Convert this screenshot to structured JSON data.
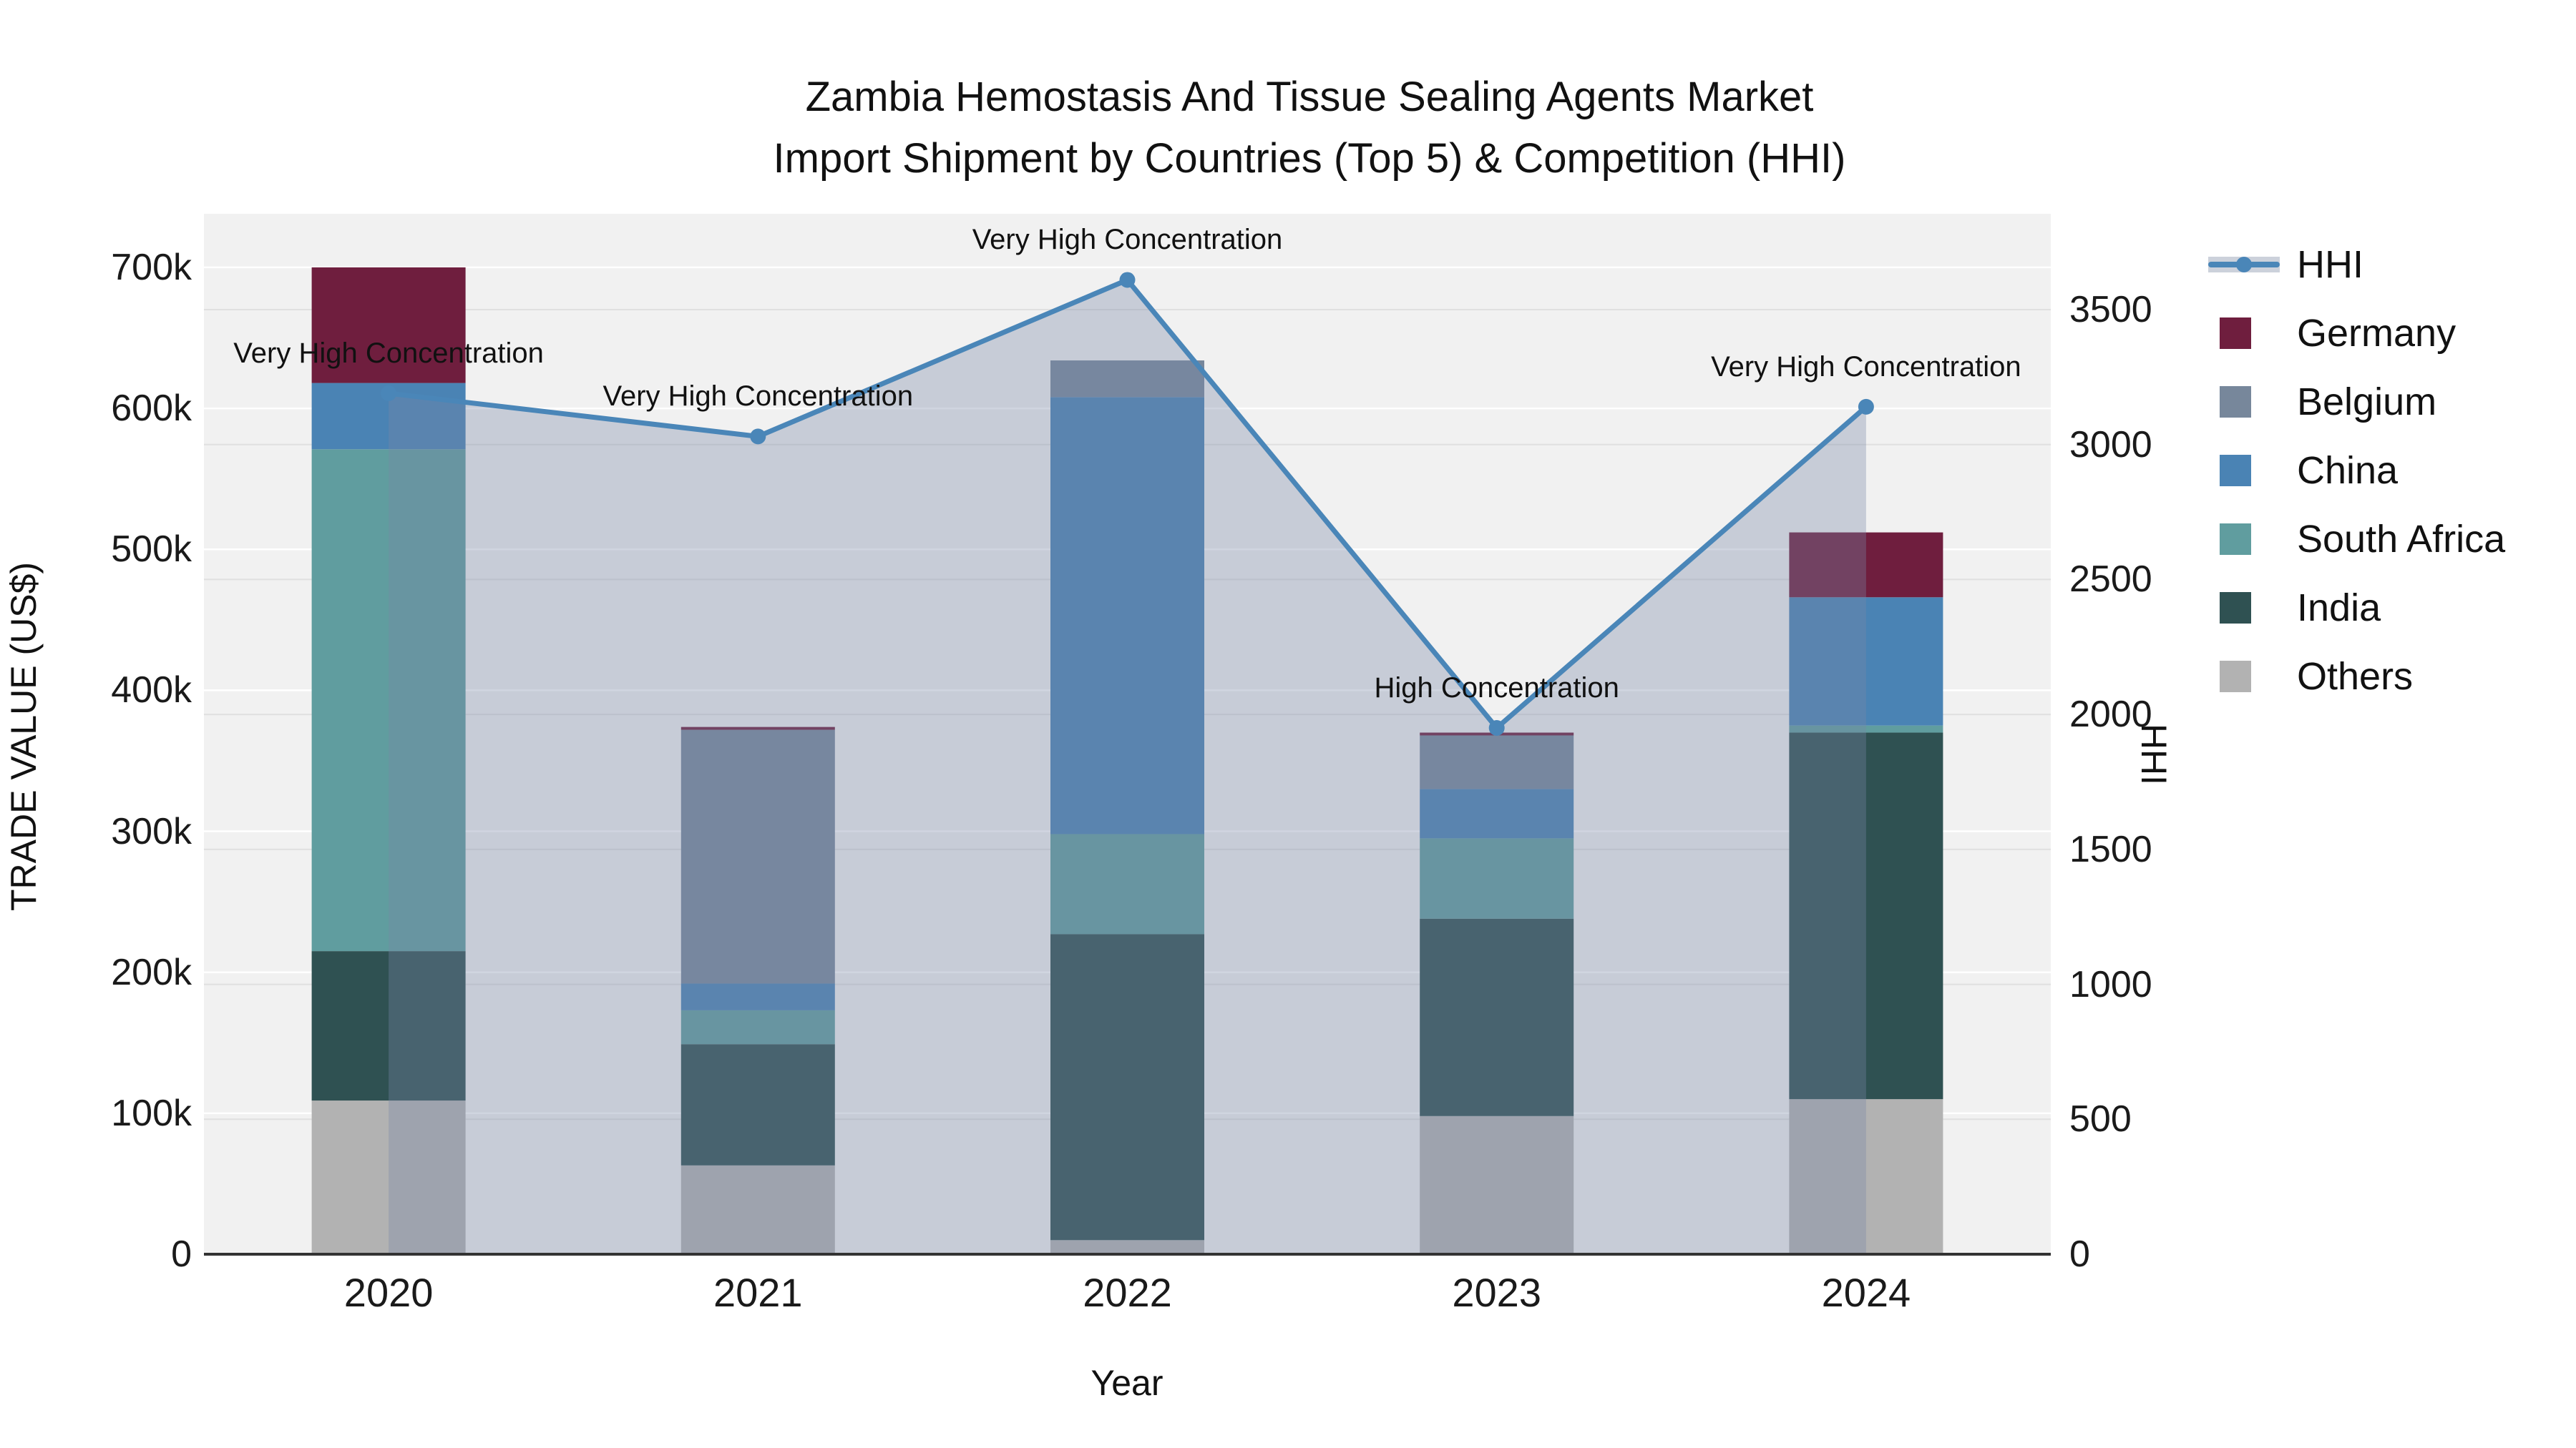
{
  "title": {
    "line1": "Zambia Hemostasis And Tissue Sealing Agents Market",
    "line2": "Import Shipment by Countries (Top 5) & Competition (HHI)"
  },
  "chart_data": {
    "type": "bar",
    "subtype": "stacked-bars-with-hhi-line-and-area",
    "categories": [
      "2020",
      "2021",
      "2022",
      "2023",
      "2024"
    ],
    "xlabel": "Year",
    "ylabel_left": "TRADE VALUE (US$)",
    "ylabel_right": "HHI",
    "y_left_ticks": [
      "0",
      "100k",
      "200k",
      "300k",
      "400k",
      "500k",
      "600k",
      "700k"
    ],
    "y_left_tick_values": [
      0,
      100000,
      200000,
      300000,
      400000,
      500000,
      600000,
      700000
    ],
    "y_left_max": 738000,
    "y_right_ticks": [
      "0",
      "500",
      "1000",
      "1500",
      "2000",
      "2500",
      "3000",
      "3500"
    ],
    "y_right_tick_values": [
      0,
      500,
      1000,
      1500,
      2000,
      2500,
      3000,
      3500
    ],
    "y_right_max": 3855,
    "grid": true,
    "legend_position": "right",
    "series": [
      {
        "name": "Germany",
        "color": "#6f1e3e",
        "values": [
          82000,
          2000,
          0,
          2000,
          46000
        ]
      },
      {
        "name": "Belgium",
        "color": "#77879b",
        "values": [
          0,
          180000,
          26000,
          38000,
          0
        ]
      },
      {
        "name": "China",
        "color": "#4a83b4",
        "values": [
          47000,
          19000,
          310000,
          35000,
          91000
        ]
      },
      {
        "name": "South Africa",
        "color": "#609d9f",
        "values": [
          356000,
          24000,
          71000,
          57000,
          5000
        ]
      },
      {
        "name": "India",
        "color": "#2f5152",
        "values": [
          106000,
          86000,
          217000,
          140000,
          260000
        ]
      },
      {
        "name": "Others",
        "color": "#b2b2b2",
        "values": [
          109000,
          63000,
          10000,
          98000,
          110000
        ]
      }
    ],
    "stack_order_bottom_to_top": [
      "Others",
      "India",
      "South Africa",
      "China",
      "Belgium",
      "Germany"
    ],
    "bar_totals": [
      700000,
      374000,
      634000,
      370000,
      512000
    ],
    "line_series": {
      "name": "HHI",
      "color": "#4a86b8",
      "area_fill": "rgba(120,135,165,0.35)",
      "values": [
        3190,
        3030,
        3610,
        1950,
        3140
      ]
    },
    "annotations": [
      {
        "x": "2020",
        "text": "Very High Concentration"
      },
      {
        "x": "2021",
        "text": "Very High Concentration"
      },
      {
        "x": "2022",
        "text": "Very High Concentration"
      },
      {
        "x": "2023",
        "text": "High Concentration"
      },
      {
        "x": "2024",
        "text": "Very High Concentration"
      }
    ],
    "legend": [
      "HHI",
      "Germany",
      "Belgium",
      "China",
      "South Africa",
      "India",
      "Others"
    ]
  },
  "colors": {
    "plot_background": "#f1f1f1",
    "grid_left": "#ffffff",
    "grid_right": "#e0e0e0",
    "axis_line": "#333333",
    "annotation_text": "#111111"
  }
}
